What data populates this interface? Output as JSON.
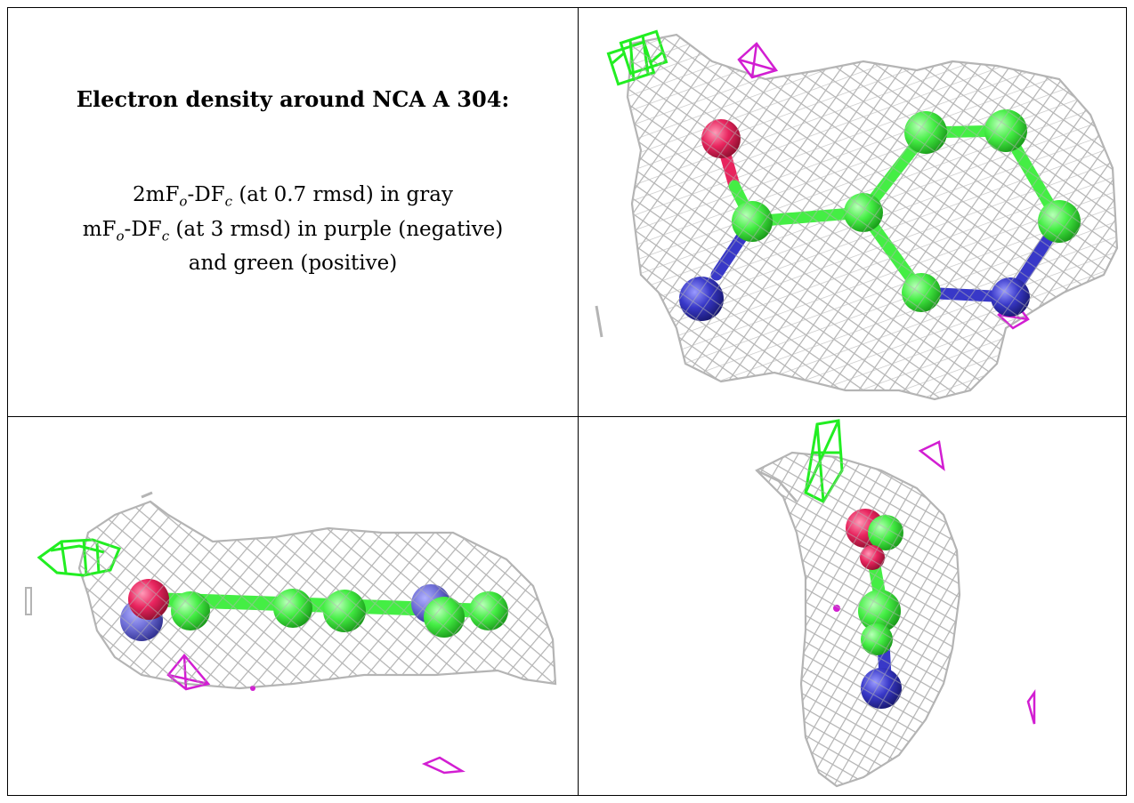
{
  "caption": {
    "title": "Electron density around NCA A 304:",
    "line1": {
      "prefix": "2mF",
      "sub1": "o",
      "mid": "-DF",
      "sub2": "c",
      "rest": " (at 0.7 rmsd) in gray"
    },
    "line2": {
      "prefix": "mF",
      "sub1": "o",
      "mid": "-DF",
      "sub2": "c",
      "rest": " (at 3 rmsd) in purple (negative)"
    },
    "line3": "and green (positive)"
  },
  "colors": {
    "density_2fofc": "#b4b4b4",
    "diff_negative": "#d21ed2",
    "diff_positive": "#22ee22",
    "carbon": "#44ee44",
    "oxygen": "#e8245e",
    "nitrogen": "#3838c8"
  },
  "panels": [
    {
      "view": "top-down",
      "icon": "density-mesh-top-icon"
    },
    {
      "view": "side",
      "icon": "density-mesh-side-icon"
    },
    {
      "view": "end-on",
      "icon": "density-mesh-end-icon"
    }
  ]
}
